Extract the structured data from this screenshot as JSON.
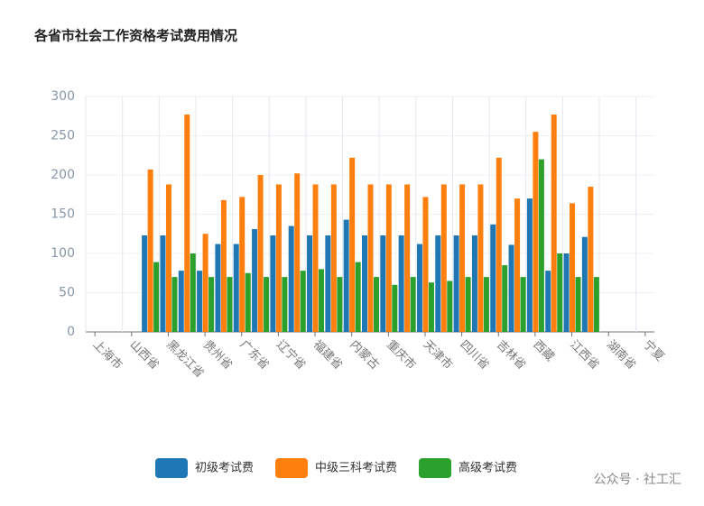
{
  "chart_data": {
    "type": "bar",
    "title": "各省市社会工作资格考试费用情况",
    "categories": [
      "上海市",
      null,
      "山西省",
      null,
      "黑龙江省",
      null,
      "贵州省",
      null,
      "广东省",
      null,
      "辽宁省",
      null,
      "福建省",
      null,
      "内蒙古",
      null,
      "重庆市",
      null,
      "天津市",
      null,
      "四川省",
      null,
      "吉林省",
      null,
      "西藏",
      null,
      "江西省",
      null,
      "湖南省",
      null,
      "宁夏"
    ],
    "series": [
      {
        "name": "初级考试费",
        "color": "#1f77b4",
        "values": [
          null,
          null,
          null,
          123,
          123,
          78,
          78,
          112,
          112,
          131,
          123,
          135,
          123,
          123,
          143,
          123,
          123,
          123,
          112,
          123,
          123,
          123,
          137,
          111,
          170,
          78,
          100,
          121,
          null,
          null,
          null
        ]
      },
      {
        "name": "中级三科考试费",
        "color": "#ff7f0e",
        "values": [
          null,
          null,
          null,
          207,
          188,
          277,
          125,
          168,
          172,
          200,
          188,
          202,
          188,
          188,
          222,
          188,
          188,
          188,
          172,
          188,
          188,
          188,
          222,
          170,
          255,
          277,
          164,
          185,
          null,
          null,
          null
        ]
      },
      {
        "name": "高级考试费",
        "color": "#2ca02c",
        "values": [
          null,
          null,
          null,
          89,
          70,
          100,
          70,
          70,
          75,
          70,
          70,
          78,
          80,
          70,
          89,
          70,
          60,
          70,
          63,
          65,
          70,
          70,
          85,
          70,
          220,
          100,
          70,
          70,
          null,
          null,
          null
        ]
      }
    ],
    "ylim": [
      0,
      300
    ],
    "yticks": [
      0,
      50,
      100,
      150,
      200,
      250,
      300
    ],
    "grid": true,
    "watermark": "公众号 · 社工汇"
  }
}
